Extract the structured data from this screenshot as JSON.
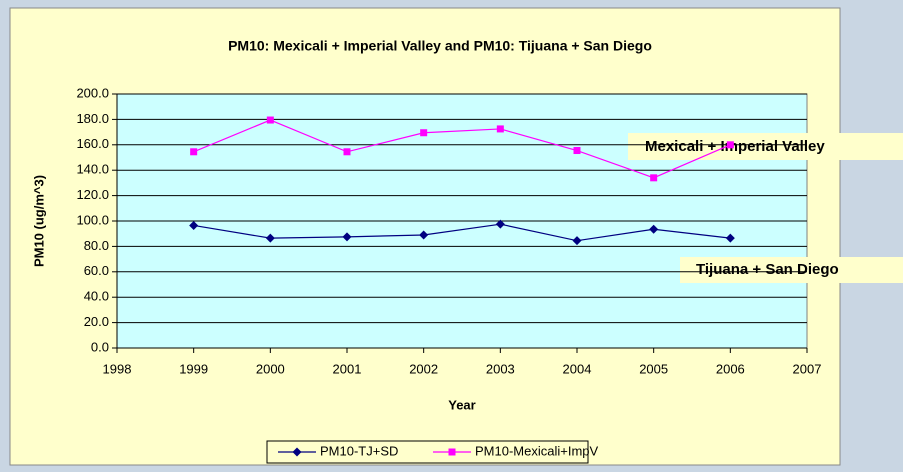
{
  "chart_data": {
    "type": "line",
    "title": "PM10: Mexicali + Imperial Valley and PM10: Tijuana + San Diego",
    "x_label": "Year",
    "y_label": "PM10 (ug/m^3)",
    "x": [
      1999,
      2000,
      2001,
      2002,
      2003,
      2004,
      2005,
      2006
    ],
    "series": [
      {
        "name": "PM10-TJ+SD",
        "color": "#000080",
        "marker": "diamond",
        "values": [
          96.5,
          86.5,
          87.5,
          89,
          97.5,
          84.5,
          93.5,
          86.5
        ]
      },
      {
        "name": "PM10-Mexicali+ImpV",
        "color": "#ff00ff",
        "marker": "square",
        "values": [
          154.5,
          179.5,
          154.5,
          169.5,
          172.5,
          155.5,
          134,
          160
        ]
      }
    ],
    "xlim": [
      1998,
      2007
    ],
    "xticks": [
      1998,
      1999,
      2000,
      2001,
      2002,
      2003,
      2004,
      2005,
      2006,
      2007
    ],
    "ylim": [
      0,
      200
    ],
    "yticks": [
      {
        "value": 0,
        "label": "0.0"
      },
      {
        "value": 20,
        "label": "20.0"
      },
      {
        "value": 40,
        "label": "40.0"
      },
      {
        "value": 60,
        "label": "60.0"
      },
      {
        "value": 80,
        "label": "80.0"
      },
      {
        "value": 100,
        "label": "100.0"
      },
      {
        "value": 120,
        "label": "120.0"
      },
      {
        "value": 140,
        "label": "140.0"
      },
      {
        "value": 160,
        "label": "160.0"
      },
      {
        "value": 180,
        "label": "180.0"
      },
      {
        "value": 200,
        "label": "200.0"
      }
    ],
    "grid": true,
    "legend": "bottom",
    "annotations": [
      {
        "text": "Mexicali + Imperial Valley"
      },
      {
        "text": "Tijuana + San Diego"
      }
    ]
  }
}
